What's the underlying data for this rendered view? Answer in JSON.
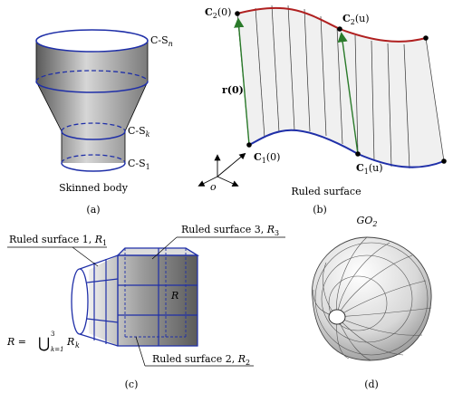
{
  "panel_a": {
    "caption": "(a)",
    "title": "Skinned body",
    "label_top": "C-S",
    "label_top_sub": "n",
    "label_mid": "C-S",
    "label_mid_sub": "k",
    "label_bottom": "C-S",
    "label_bottom_sub": "1"
  },
  "panel_b": {
    "caption": "(b)",
    "title": "Ruled surface",
    "c2_0": "C",
    "c2_0_sub": "2",
    "c2_0_arg": "(0)",
    "c2_u": "C",
    "c2_u_sub": "2",
    "c2_u_arg": "(u)",
    "c1_0": "C",
    "c1_0_sub": "1",
    "c1_0_arg": "(0)",
    "c1_u": "C",
    "c1_u_sub": "1",
    "c1_u_arg": "(u)",
    "r0": "r(0)",
    "origin": "o",
    "colors": {
      "top_curve": "#b02020",
      "bottom_curve": "#1f2fa8",
      "vector": "#2a7a2a"
    }
  },
  "panel_c": {
    "caption": "(c)",
    "rs1": "Ruled surface 1, ",
    "rs1_sym": "R",
    "rs1_sub": "1",
    "rs2": "Ruled surface 2, ",
    "rs2_sym": "R",
    "rs2_sub": "2",
    "rs3": "Ruled surface 3, ",
    "rs3_sym": "R",
    "rs3_sub": "3",
    "center": "R",
    "union_lhs": "R = ",
    "union_op": "⋃",
    "union_top": "3",
    "union_bottom": "k=1",
    "union_rhs": "R",
    "union_rhs_sub": "k",
    "colors": {
      "edge": "#1f2fa8"
    }
  },
  "panel_d": {
    "caption": "(d)",
    "title": "GO",
    "title_sub": "2"
  }
}
